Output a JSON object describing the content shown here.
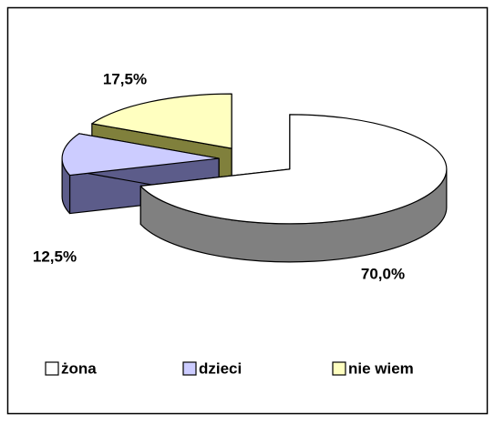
{
  "chart_data": {
    "type": "pie3d",
    "categories": [
      "żona",
      "dzieci",
      "nie wiem"
    ],
    "values": [
      70.0,
      12.5,
      17.5
    ],
    "value_labels": [
      "70,0%",
      "12,5%",
      "17,5%"
    ],
    "colors": [
      "#ffffff",
      "#ccccff",
      "#ffffc0"
    ],
    "legend": "bottom"
  }
}
